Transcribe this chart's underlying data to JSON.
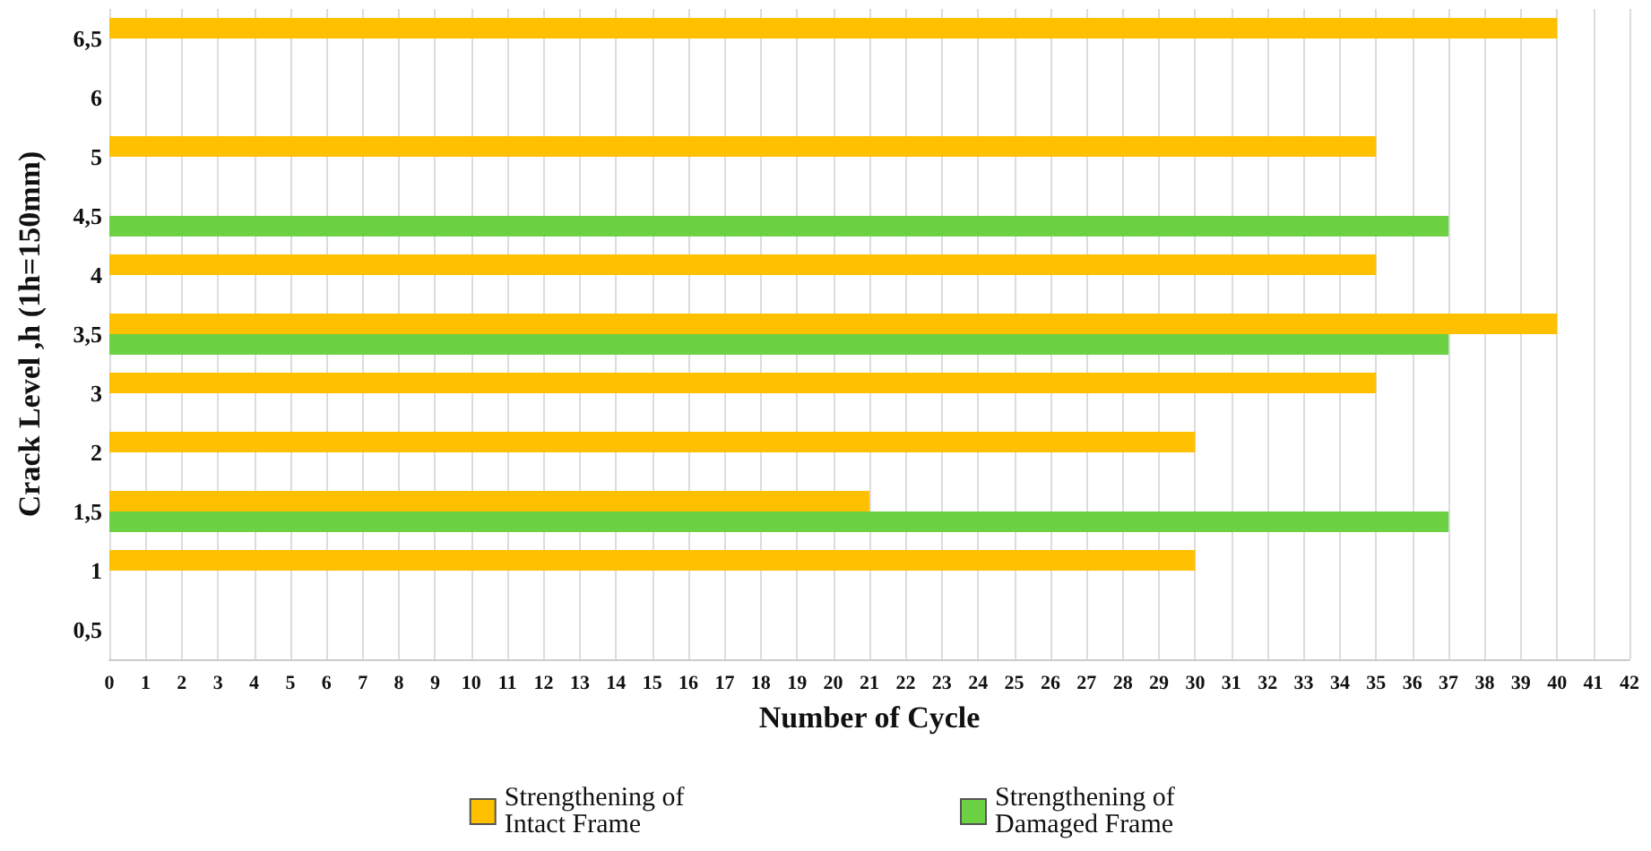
{
  "chart_data": {
    "type": "bar",
    "orientation": "horizontal",
    "xlabel": "Number of Cycle",
    "ylabel": "Crack Level ,h (1h=150mm)",
    "categories": [
      "6,5",
      "6",
      "5",
      "4,5",
      "4",
      "3,5",
      "3",
      "2",
      "1,5",
      "1",
      "0,5"
    ],
    "series": [
      {
        "name": "Strengthening of Intact Frame",
        "color": "#ffc000",
        "values": [
          40,
          null,
          35,
          null,
          35,
          40,
          35,
          30,
          21,
          30,
          null
        ]
      },
      {
        "name": "Strengthening of Damaged Frame",
        "color": "#6dd144",
        "values": [
          null,
          null,
          null,
          37,
          null,
          37,
          null,
          null,
          37,
          null,
          null
        ]
      }
    ],
    "xlim": [
      0,
      42
    ],
    "xticks": [
      0,
      1,
      2,
      3,
      4,
      5,
      6,
      7,
      8,
      9,
      10,
      11,
      12,
      13,
      14,
      15,
      16,
      17,
      18,
      19,
      20,
      21,
      22,
      23,
      24,
      25,
      26,
      27,
      28,
      29,
      30,
      31,
      32,
      33,
      34,
      35,
      36,
      37,
      38,
      39,
      40,
      41,
      42
    ],
    "grid": "x",
    "legend": "bottom"
  }
}
